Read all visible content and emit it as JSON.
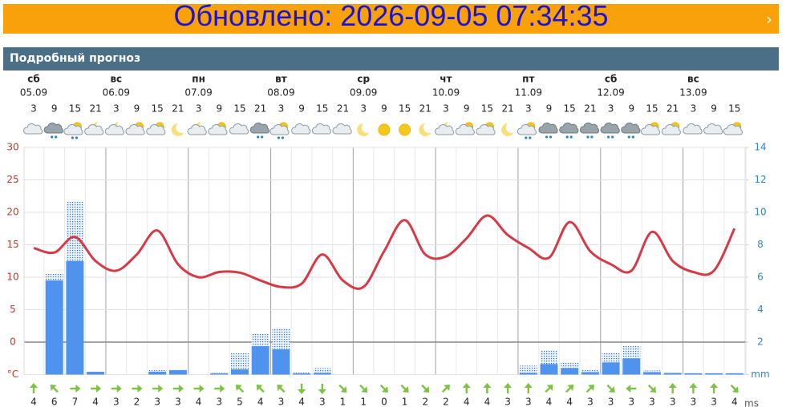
{
  "header": {
    "updated": "Обновлено: 2026-09-05 07:34:35"
  },
  "section_title": "Подробный прогноз",
  "chart_data": {
    "type": "forecast",
    "days": [
      {
        "weekday": "сб",
        "date": "05.09"
      },
      {
        "weekday": "вс",
        "date": "06.09"
      },
      {
        "weekday": "пн",
        "date": "07.09"
      },
      {
        "weekday": "вт",
        "date": "08.09"
      },
      {
        "weekday": "ср",
        "date": "09.09"
      },
      {
        "weekday": "чт",
        "date": "10.09"
      },
      {
        "weekday": "пт",
        "date": "11.09"
      },
      {
        "weekday": "сб",
        "date": "12.09"
      },
      {
        "weekday": "вс",
        "date": "13.09"
      }
    ],
    "hours": [
      3,
      9,
      15,
      21,
      3,
      9,
      15,
      21,
      3,
      9,
      15,
      21,
      3,
      9,
      15,
      21,
      3,
      9,
      15,
      21,
      3,
      9,
      15,
      21,
      3,
      9,
      15,
      21,
      3,
      9,
      15,
      21,
      3,
      9,
      15
    ],
    "temperature": {
      "color": "#d63a47",
      "values": [
        14.5,
        13.8,
        16.2,
        12.5,
        11,
        13.5,
        17.2,
        12,
        10,
        10.8,
        10.7,
        9.5,
        8.5,
        9,
        13.5,
        9.5,
        8.5,
        14,
        18.8,
        13.5,
        13.2,
        16,
        19.5,
        16.5,
        14.5,
        13,
        18.5,
        14,
        12,
        11,
        17,
        12.5,
        10.8,
        11,
        17.5
      ]
    },
    "precipitation": {
      "color": "#4f93ef",
      "values": [
        0,
        5.8,
        7,
        0.17,
        0,
        0,
        0.17,
        0.27,
        0,
        0.07,
        0.32,
        1.75,
        1.55,
        0.07,
        0.1,
        0,
        0,
        0,
        0,
        0,
        0,
        0,
        0,
        0,
        0.1,
        0.65,
        0.4,
        0.15,
        0.75,
        1,
        0.15,
        0.1,
        0.08,
        0.08,
        0.08
      ]
    },
    "precipitation_possible": {
      "color": "#4f93ef",
      "values": [
        0,
        0.4,
        3.65,
        0,
        0,
        0,
        0.1,
        0.05,
        0,
        0.03,
        1,
        0.75,
        1.3,
        0.05,
        0.3,
        0,
        0,
        0,
        0,
        0,
        0,
        0,
        0,
        0,
        0.45,
        0.85,
        0.35,
        0.15,
        0.6,
        0.75,
        0.1,
        0,
        0,
        0,
        0
      ]
    },
    "wind": {
      "color": "#7cc243",
      "unit": "ms",
      "values": [
        4,
        6,
        7,
        4,
        3,
        2,
        3,
        3,
        4,
        3,
        5,
        4,
        3,
        4,
        3,
        1,
        1,
        0,
        1,
        2,
        2,
        4,
        4,
        3,
        3,
        4,
        4,
        3,
        3,
        3,
        3,
        3,
        3,
        3,
        4
      ],
      "directions": [
        0,
        315,
        90,
        90,
        90,
        90,
        90,
        90,
        90,
        90,
        315,
        315,
        315,
        180,
        180,
        135,
        135,
        135,
        135,
        135,
        45,
        0,
        0,
        0,
        0,
        45,
        45,
        45,
        135,
        270,
        135,
        0,
        0,
        0,
        135
      ]
    },
    "ylim": [
      -5,
      30
    ],
    "yticks": [
      {
        "value": -5,
        "label": "°C"
      },
      0,
      5,
      10,
      15,
      20,
      25,
      30
    ],
    "y2lim": [
      0,
      14
    ],
    "y2ticks": [
      {
        "value": 0,
        "label": "mm"
      },
      2,
      4,
      6,
      8,
      10,
      12,
      14
    ],
    "grid": true
  }
}
